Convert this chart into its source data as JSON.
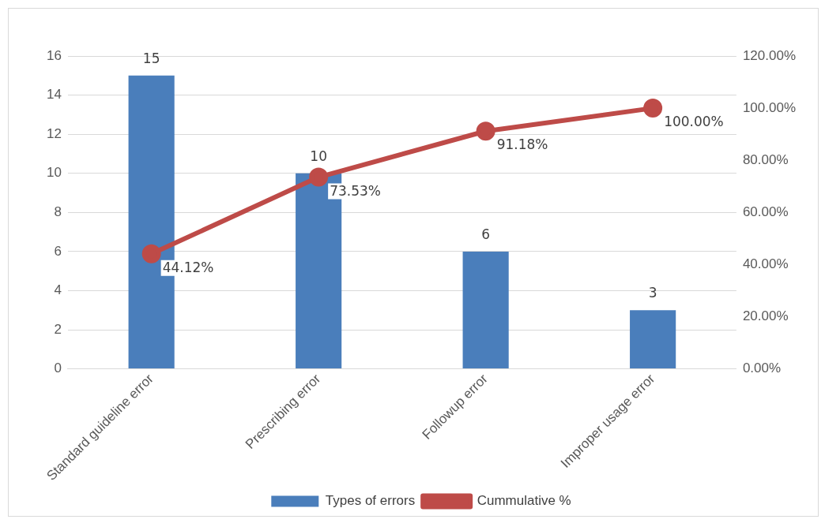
{
  "chart_data": {
    "type": "bar",
    "categories": [
      "Standard guideline error",
      "Prescribing error",
      "Followup error",
      "Improper usage error"
    ],
    "series": [
      {
        "name": "Types of errors",
        "color": "#4a7ebb",
        "values": [
          15,
          10,
          6,
          3
        ],
        "value_labels": [
          "15",
          "10",
          "6",
          "3"
        ]
      },
      {
        "name": "Cummulative %",
        "type": "line",
        "axis": "y2",
        "color": "#be4b48",
        "marker": "circle",
        "values": [
          44.12,
          73.53,
          91.18,
          100
        ],
        "value_labels": [
          "44.12%",
          "73.53%",
          "91.18%",
          "100.00%"
        ]
      }
    ],
    "ylim": [
      0,
      16
    ],
    "yticks": [
      0,
      2,
      4,
      6,
      8,
      10,
      12,
      14,
      16
    ],
    "y2lim": [
      0,
      120
    ],
    "y2ticks": [
      {
        "value": 0,
        "label": "0.00%"
      },
      {
        "value": 20,
        "label": "20.00%"
      },
      {
        "value": 40,
        "label": "40.00%"
      },
      {
        "value": 60,
        "label": "60.00%"
      },
      {
        "value": 80,
        "label": "80.00%"
      },
      {
        "value": 100,
        "label": "100.00%"
      },
      {
        "value": 120,
        "label": "120.00%"
      }
    ],
    "grid": "y",
    "legend": "bottom"
  }
}
